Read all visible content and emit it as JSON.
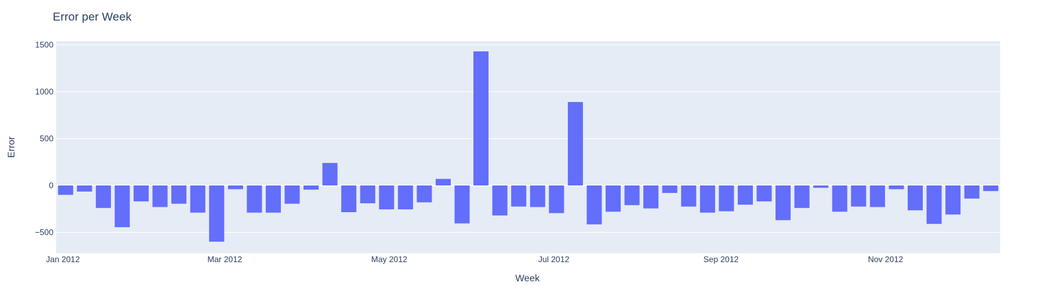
{
  "chart_data": {
    "type": "bar",
    "title": "Error per Week",
    "xlabel": "Week",
    "ylabel": "Error",
    "color": "#636efa",
    "grid": true,
    "x": [
      "2012-01-02",
      "2012-01-09",
      "2012-01-16",
      "2012-01-23",
      "2012-01-30",
      "2012-02-06",
      "2012-02-13",
      "2012-02-20",
      "2012-02-27",
      "2012-03-05",
      "2012-03-12",
      "2012-03-19",
      "2012-03-26",
      "2012-04-02",
      "2012-04-09",
      "2012-04-16",
      "2012-04-23",
      "2012-04-30",
      "2012-05-07",
      "2012-05-14",
      "2012-05-21",
      "2012-05-28",
      "2012-06-04",
      "2012-06-11",
      "2012-06-18",
      "2012-06-25",
      "2012-07-02",
      "2012-07-09",
      "2012-07-16",
      "2012-07-23",
      "2012-07-30",
      "2012-08-06",
      "2012-08-13",
      "2012-08-20",
      "2012-08-27",
      "2012-09-03",
      "2012-09-10",
      "2012-09-17",
      "2012-09-24",
      "2012-10-01",
      "2012-10-08",
      "2012-10-15",
      "2012-10-22",
      "2012-10-29",
      "2012-11-05",
      "2012-11-12",
      "2012-11-19",
      "2012-11-26",
      "2012-12-03",
      "2012-12-10"
    ],
    "values": [
      -100,
      -65,
      -240,
      -445,
      -170,
      -230,
      -195,
      -290,
      -600,
      -40,
      -290,
      -290,
      -195,
      -45,
      240,
      -285,
      -190,
      -255,
      -255,
      -180,
      70,
      -405,
      1430,
      -320,
      -225,
      -230,
      -295,
      890,
      -415,
      -280,
      -210,
      -245,
      -80,
      -225,
      -290,
      -275,
      -205,
      -170,
      -370,
      -240,
      -25,
      -280,
      -225,
      -230,
      -40,
      -265,
      -410,
      -310,
      -140,
      -60
    ],
    "xlim": [
      "2011-12-29T12:00:00Z",
      "2012-12-13T12:00:00Z"
    ],
    "xticks": [
      {
        "value": "2012-01-01",
        "label": "Jan 2012"
      },
      {
        "value": "2012-03-01",
        "label": "Mar 2012"
      },
      {
        "value": "2012-05-01",
        "label": "May 2012"
      },
      {
        "value": "2012-07-01",
        "label": "Jul 2012"
      },
      {
        "value": "2012-09-01",
        "label": "Sep 2012"
      },
      {
        "value": "2012-11-01",
        "label": "Nov 2012"
      }
    ],
    "ylim": [
      -723,
      1540
    ],
    "yticks": [
      {
        "value": -500,
        "label": "−500"
      },
      0,
      500,
      1000,
      1500
    ]
  }
}
